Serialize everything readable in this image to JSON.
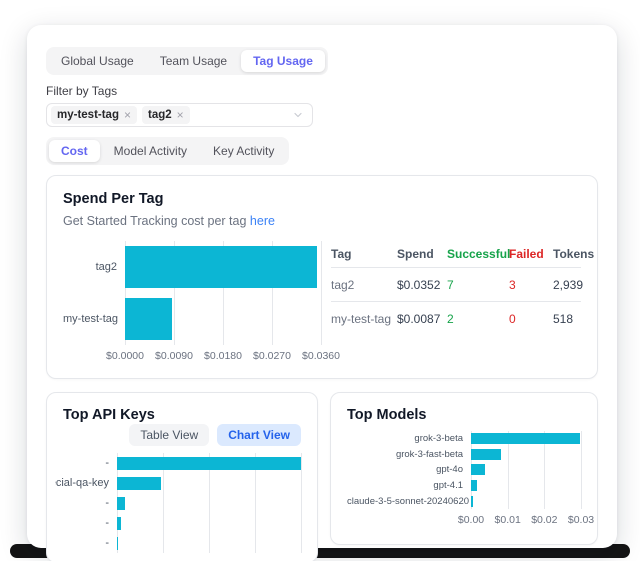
{
  "tabs_primary": {
    "items": [
      {
        "label": "Global Usage",
        "selected": false
      },
      {
        "label": "Team Usage",
        "selected": false
      },
      {
        "label": "Tag Usage",
        "selected": true
      }
    ]
  },
  "filter": {
    "label": "Filter by Tags",
    "selected_tags": [
      {
        "label": "my-test-tag",
        "remove_icon": "×"
      },
      {
        "label": "tag2",
        "remove_icon": "×"
      }
    ]
  },
  "tabs_secondary": {
    "items": [
      {
        "label": "Cost",
        "selected": true
      },
      {
        "label": "Model Activity",
        "selected": false
      },
      {
        "label": "Key Activity",
        "selected": false
      }
    ]
  },
  "spend_card": {
    "title": "Spend Per Tag",
    "subtitle_text": "Get Started Tracking cost per tag",
    "subtitle_link": "here",
    "table": {
      "columns": [
        "Tag",
        "Spend",
        "Successful",
        "Failed",
        "Tokens"
      ],
      "rows": [
        {
          "tag": "tag2",
          "spend": "$0.0352",
          "successful": "7",
          "failed": "3",
          "tokens": "2,939"
        },
        {
          "tag": "my-test-tag",
          "spend": "$0.0087",
          "successful": "2",
          "failed": "0",
          "tokens": "518"
        }
      ]
    }
  },
  "top_api_keys_card": {
    "title": "Top API Keys",
    "view_toggle": [
      {
        "label": "Table View",
        "selected": false
      },
      {
        "label": "Chart View",
        "selected": true
      }
    ]
  },
  "top_models_card": {
    "title": "Top Models"
  },
  "colors": {
    "accent_indigo": "#6366f1",
    "bar_cyan": "#0cb6d4",
    "success_green": "#16a34a",
    "failed_red": "#dc2626",
    "link_blue": "#3b82f6",
    "selected_view_bg": "#dbe9fe",
    "selected_view_text": "#2563eb"
  },
  "chart_data": [
    {
      "id": "spend_per_tag",
      "type": "bar",
      "orientation": "horizontal",
      "title": "Spend Per Tag",
      "categories": [
        "tag2",
        "my-test-tag"
      ],
      "values": [
        0.0352,
        0.0087
      ],
      "value_unit": "USD",
      "xlim": [
        0,
        0.036
      ],
      "xticks": [
        "$0.0000",
        "$0.0090",
        "$0.0180",
        "$0.0270",
        "$0.0360"
      ],
      "grid": true,
      "legend": false
    },
    {
      "id": "top_api_keys",
      "type": "bar",
      "orientation": "horizontal",
      "title": "Top API Keys",
      "categories": [
        "-",
        "special-qa-key",
        "-",
        "-",
        "-"
      ],
      "values": [
        100,
        24,
        4.5,
        2.2,
        0.3
      ],
      "value_unit": "percent-of-max (x axis labels cut off at panel edge)",
      "xlim": [
        0,
        100
      ],
      "xticks": [],
      "gridline_count": 5,
      "grid": true,
      "legend": false
    },
    {
      "id": "top_models",
      "type": "bar",
      "orientation": "horizontal",
      "title": "Top Models",
      "categories": [
        "grok-3-beta",
        "grok-3-fast-beta",
        "gpt-4o",
        "gpt-4.1",
        "claude-3-5-sonnet-20240620"
      ],
      "values": [
        0.0296,
        0.0082,
        0.0037,
        0.0016,
        0.0006
      ],
      "value_unit": "USD",
      "xlim": [
        0,
        0.03
      ],
      "xticks": [
        "$0.00",
        "$0.01",
        "$0.02",
        "$0.03"
      ],
      "grid": true,
      "legend": false
    }
  ]
}
